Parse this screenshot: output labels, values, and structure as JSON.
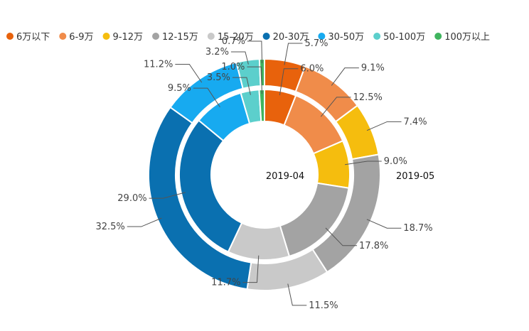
{
  "chart_data": {
    "type": "pie",
    "subtype": "nested-donut",
    "categories": [
      "6万以下",
      "6-9万",
      "9-12万",
      "12-15万",
      "15-20万",
      "20-30万",
      "30-50万",
      "50-100万",
      "100万以上"
    ],
    "colors": [
      "#e8620c",
      "#f08c4a",
      "#f5bd0e",
      "#a3a3a3",
      "#c9c9c9",
      "#0a70b0",
      "#17aaf0",
      "#5ccfcc",
      "#3fb45e"
    ],
    "series": [
      {
        "name": "2019-04",
        "ring": "inner",
        "values": [
          6.0,
          12.5,
          9.0,
          17.8,
          11.7,
          29.0,
          9.5,
          3.5,
          1.0
        ]
      },
      {
        "name": "2019-05",
        "ring": "outer",
        "values": [
          5.7,
          9.1,
          7.4,
          18.7,
          11.5,
          32.5,
          11.2,
          3.2,
          0.7
        ]
      }
    ],
    "legend_position": "top"
  }
}
